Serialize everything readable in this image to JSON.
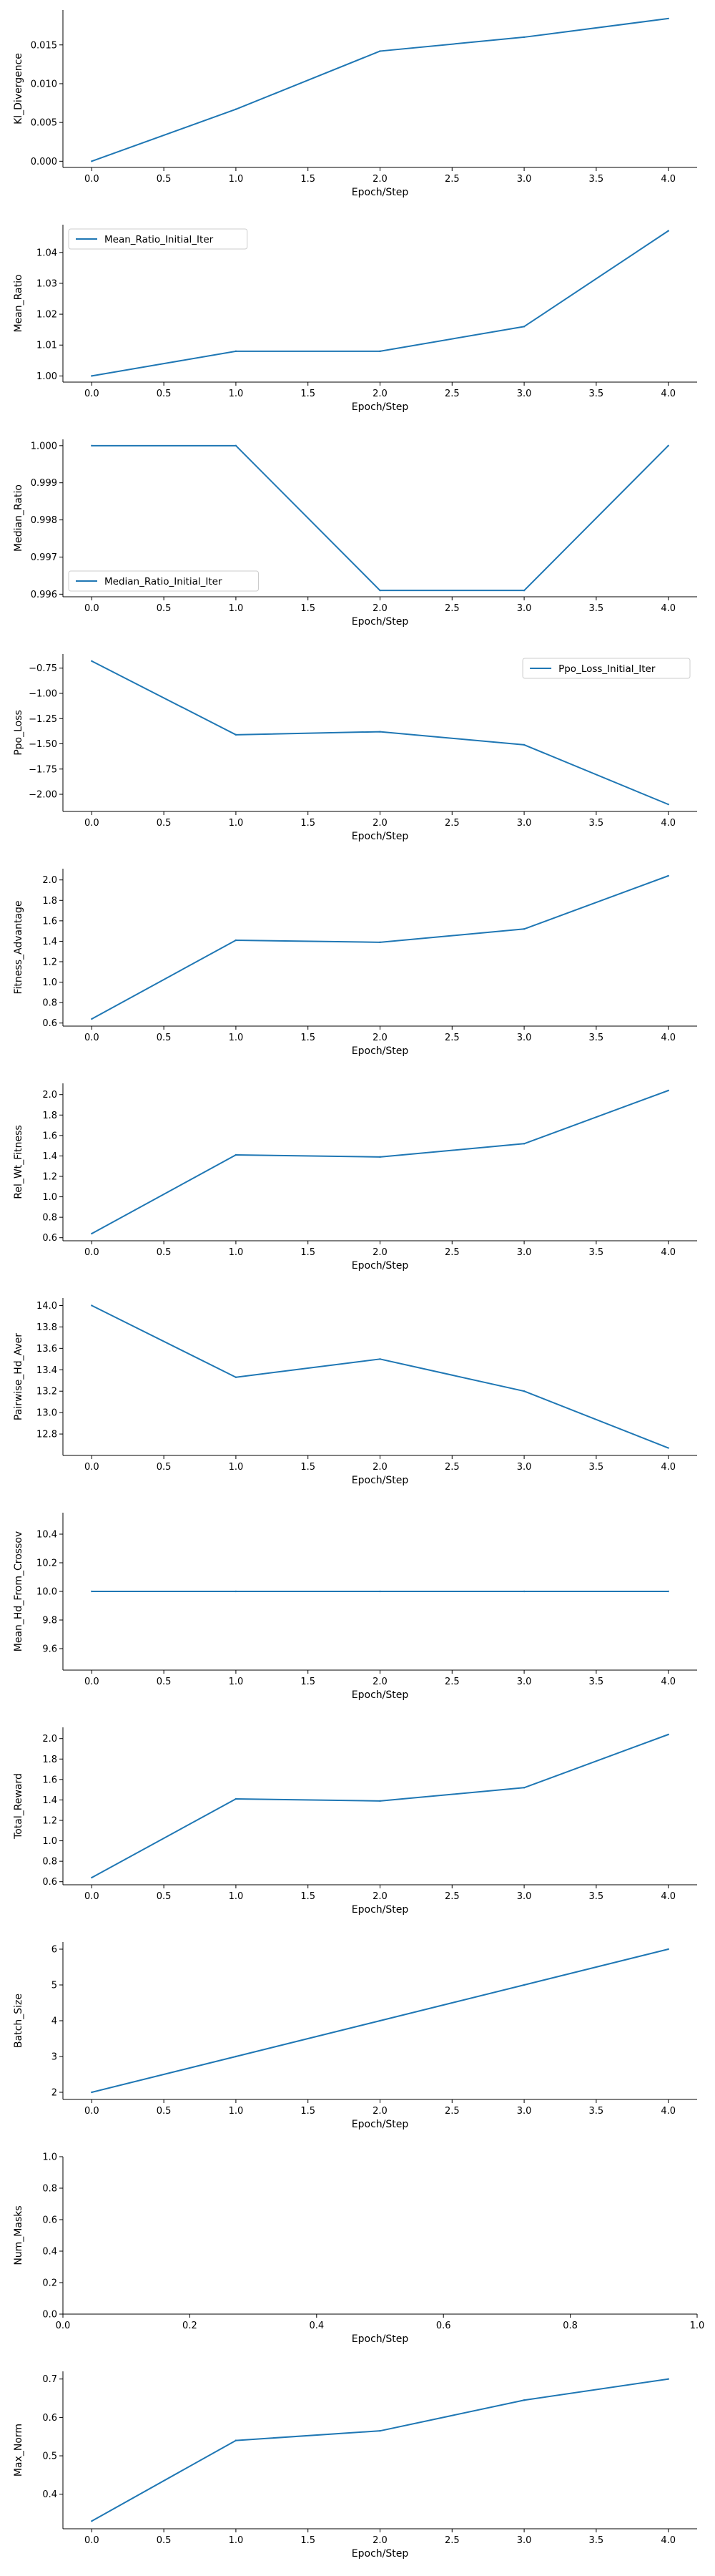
{
  "chart_data": [
    {
      "type": "line",
      "xlabel": "Epoch/Step",
      "ylabel": "Kl_Divergence",
      "x": [
        0.0,
        1.0,
        2.0,
        3.0,
        4.0
      ],
      "series": [
        {
          "values": [
            0.0,
            0.0067,
            0.0142,
            0.016,
            0.0184
          ],
          "color": "#1f77b4"
        }
      ],
      "xlim": [
        -0.2,
        4.2
      ],
      "ylim": [
        -0.0008,
        0.0195
      ],
      "xticks": [
        "0.0",
        "0.5",
        "1.0",
        "1.5",
        "2.0",
        "2.5",
        "3.0",
        "3.5",
        "4.0"
      ],
      "yticks": [
        "0.000",
        "0.005",
        "0.010",
        "0.015"
      ],
      "ytick_values": [
        0.0,
        0.005,
        0.01,
        0.015
      ],
      "legend": null
    },
    {
      "type": "line",
      "xlabel": "Epoch/Step",
      "ylabel": "Mean_Ratio",
      "x": [
        0.0,
        1.0,
        2.0,
        3.0,
        4.0
      ],
      "series": [
        {
          "name": "Mean_Ratio_Initial_Iter",
          "values": [
            1.0,
            1.008,
            1.008,
            1.016,
            1.047
          ],
          "color": "#1f77b4"
        }
      ],
      "xlim": [
        -0.2,
        4.2
      ],
      "ylim": [
        0.998,
        1.049
      ],
      "xticks": [
        "0.0",
        "0.5",
        "1.0",
        "1.5",
        "2.0",
        "2.5",
        "3.0",
        "3.5",
        "4.0"
      ],
      "yticks": [
        "1.00",
        "1.01",
        "1.02",
        "1.03",
        "1.04"
      ],
      "ytick_values": [
        1.0,
        1.01,
        1.02,
        1.03,
        1.04
      ],
      "legend": "upper left"
    },
    {
      "type": "line",
      "xlabel": "Epoch/Step",
      "ylabel": "Median_Ratio",
      "x": [
        0.0,
        1.0,
        2.0,
        3.0,
        4.0
      ],
      "series": [
        {
          "name": "Median_Ratio_Initial_Iter",
          "values": [
            1.0,
            1.0,
            0.9961,
            0.9961,
            1.0
          ],
          "color": "#1f77b4"
        }
      ],
      "xlim": [
        -0.2,
        4.2
      ],
      "ylim": [
        0.99593,
        1.00017
      ],
      "xticks": [
        "0.0",
        "0.5",
        "1.0",
        "1.5",
        "2.0",
        "2.5",
        "3.0",
        "3.5",
        "4.0"
      ],
      "yticks": [
        "0.996",
        "0.997",
        "0.998",
        "0.999",
        "1.000"
      ],
      "ytick_values": [
        0.996,
        0.997,
        0.998,
        0.999,
        1.0
      ],
      "legend": "lower left"
    },
    {
      "type": "line",
      "xlabel": "Epoch/Step",
      "ylabel": "Ppo_Loss",
      "x": [
        0.0,
        1.0,
        2.0,
        3.0,
        4.0
      ],
      "series": [
        {
          "name": "Ppo_Loss_Initial_Iter",
          "values": [
            -0.68,
            -1.41,
            -1.38,
            -1.51,
            -2.1
          ],
          "color": "#1f77b4"
        }
      ],
      "xlim": [
        -0.2,
        4.2
      ],
      "ylim": [
        -2.17,
        -0.61
      ],
      "xticks": [
        "0.0",
        "0.5",
        "1.0",
        "1.5",
        "2.0",
        "2.5",
        "3.0",
        "3.5",
        "4.0"
      ],
      "yticks": [
        "−0.75",
        "−1.00",
        "−1.25",
        "−1.50",
        "−1.75",
        "−2.00"
      ],
      "ytick_values": [
        -0.75,
        -1.0,
        -1.25,
        -1.5,
        -1.75,
        -2.0
      ],
      "legend": "upper right"
    },
    {
      "type": "line",
      "xlabel": "Epoch/Step",
      "ylabel": "Fitness_Advantage",
      "x": [
        0.0,
        1.0,
        2.0,
        3.0,
        4.0
      ],
      "series": [
        {
          "values": [
            0.64,
            1.41,
            1.39,
            1.52,
            2.04
          ],
          "color": "#1f77b4"
        }
      ],
      "xlim": [
        -0.2,
        4.2
      ],
      "ylim": [
        0.57,
        2.11
      ],
      "xticks": [
        "0.0",
        "0.5",
        "1.0",
        "1.5",
        "2.0",
        "2.5",
        "3.0",
        "3.5",
        "4.0"
      ],
      "yticks": [
        "0.6",
        "0.8",
        "1.0",
        "1.2",
        "1.4",
        "1.6",
        "1.8",
        "2.0"
      ],
      "ytick_values": [
        0.6,
        0.8,
        1.0,
        1.2,
        1.4,
        1.6,
        1.8,
        2.0
      ],
      "legend": null
    },
    {
      "type": "line",
      "xlabel": "Epoch/Step",
      "ylabel": "Rel_Wt_Fitness",
      "x": [
        0.0,
        1.0,
        2.0,
        3.0,
        4.0
      ],
      "series": [
        {
          "values": [
            0.64,
            1.41,
            1.39,
            1.52,
            2.04
          ],
          "color": "#1f77b4"
        }
      ],
      "xlim": [
        -0.2,
        4.2
      ],
      "ylim": [
        0.57,
        2.11
      ],
      "xticks": [
        "0.0",
        "0.5",
        "1.0",
        "1.5",
        "2.0",
        "2.5",
        "3.0",
        "3.5",
        "4.0"
      ],
      "yticks": [
        "0.6",
        "0.8",
        "1.0",
        "1.2",
        "1.4",
        "1.6",
        "1.8",
        "2.0"
      ],
      "ytick_values": [
        0.6,
        0.8,
        1.0,
        1.2,
        1.4,
        1.6,
        1.8,
        2.0
      ],
      "legend": null
    },
    {
      "type": "line",
      "xlabel": "Epoch/Step",
      "ylabel": "Pairwise_Hd_Aver",
      "x": [
        0.0,
        1.0,
        2.0,
        3.0,
        4.0
      ],
      "series": [
        {
          "values": [
            14.0,
            13.33,
            13.5,
            13.2,
            12.67
          ],
          "color": "#1f77b4"
        }
      ],
      "xlim": [
        -0.2,
        4.2
      ],
      "ylim": [
        12.6,
        14.07
      ],
      "xticks": [
        "0.0",
        "0.5",
        "1.0",
        "1.5",
        "2.0",
        "2.5",
        "3.0",
        "3.5",
        "4.0"
      ],
      "yticks": [
        "12.8",
        "13.0",
        "13.2",
        "13.4",
        "13.6",
        "13.8",
        "14.0"
      ],
      "ytick_values": [
        12.8,
        13.0,
        13.2,
        13.4,
        13.6,
        13.8,
        14.0
      ],
      "legend": null
    },
    {
      "type": "line",
      "xlabel": "Epoch/Step",
      "ylabel": "Mean_Hd_From_Crossov",
      "x": [
        0.0,
        1.0,
        2.0,
        3.0,
        4.0
      ],
      "series": [
        {
          "values": [
            10.0,
            10.0,
            10.0,
            10.0,
            10.0
          ],
          "color": "#1f77b4"
        }
      ],
      "xlim": [
        -0.2,
        4.2
      ],
      "ylim": [
        9.45,
        10.55
      ],
      "xticks": [
        "0.0",
        "0.5",
        "1.0",
        "1.5",
        "2.0",
        "2.5",
        "3.0",
        "3.5",
        "4.0"
      ],
      "yticks": [
        "9.6",
        "9.8",
        "10.0",
        "10.2",
        "10.4"
      ],
      "ytick_values": [
        9.6,
        9.8,
        10.0,
        10.2,
        10.4
      ],
      "legend": null
    },
    {
      "type": "line",
      "xlabel": "Epoch/Step",
      "ylabel": "Total_Reward",
      "x": [
        0.0,
        1.0,
        2.0,
        3.0,
        4.0
      ],
      "series": [
        {
          "values": [
            0.64,
            1.41,
            1.39,
            1.52,
            2.04
          ],
          "color": "#1f77b4"
        }
      ],
      "xlim": [
        -0.2,
        4.2
      ],
      "ylim": [
        0.57,
        2.11
      ],
      "xticks": [
        "0.0",
        "0.5",
        "1.0",
        "1.5",
        "2.0",
        "2.5",
        "3.0",
        "3.5",
        "4.0"
      ],
      "yticks": [
        "0.6",
        "0.8",
        "1.0",
        "1.2",
        "1.4",
        "1.6",
        "1.8",
        "2.0"
      ],
      "ytick_values": [
        0.6,
        0.8,
        1.0,
        1.2,
        1.4,
        1.6,
        1.8,
        2.0
      ],
      "legend": null
    },
    {
      "type": "line",
      "xlabel": "Epoch/Step",
      "ylabel": "Batch_Size",
      "x": [
        0.0,
        1.0,
        2.0,
        3.0,
        4.0
      ],
      "series": [
        {
          "values": [
            2,
            3,
            4,
            5,
            6
          ],
          "color": "#1f77b4"
        }
      ],
      "xlim": [
        -0.2,
        4.2
      ],
      "ylim": [
        1.8,
        6.2
      ],
      "xticks": [
        "0.0",
        "0.5",
        "1.0",
        "1.5",
        "2.0",
        "2.5",
        "3.0",
        "3.5",
        "4.0"
      ],
      "yticks": [
        "2",
        "3",
        "4",
        "5",
        "6"
      ],
      "ytick_values": [
        2,
        3,
        4,
        5,
        6
      ],
      "legend": null
    },
    {
      "type": "line",
      "xlabel": "Epoch/Step",
      "ylabel": "Num_Masks",
      "x": [],
      "series": [],
      "xlim": [
        0.0,
        1.0
      ],
      "ylim": [
        0.0,
        1.0
      ],
      "xticks": [
        "0.0",
        "0.2",
        "0.4",
        "0.6",
        "0.8",
        "1.0"
      ],
      "xtick_values": [
        0.0,
        0.2,
        0.4,
        0.6,
        0.8,
        1.0
      ],
      "yticks": [
        "0.0",
        "0.2",
        "0.4",
        "0.6",
        "0.8",
        "1.0"
      ],
      "ytick_values": [
        0.0,
        0.2,
        0.4,
        0.6,
        0.8,
        1.0
      ],
      "legend": null
    },
    {
      "type": "line",
      "xlabel": "Epoch/Step",
      "ylabel": "Max_Norm",
      "x": [
        0.0,
        1.0,
        2.0,
        3.0,
        4.0
      ],
      "series": [
        {
          "values": [
            0.33,
            0.54,
            0.565,
            0.645,
            0.7
          ],
          "color": "#1f77b4"
        }
      ],
      "xlim": [
        -0.2,
        4.2
      ],
      "ylim": [
        0.31,
        0.72
      ],
      "xticks": [
        "0.0",
        "0.5",
        "1.0",
        "1.5",
        "2.0",
        "2.5",
        "3.0",
        "3.5",
        "4.0"
      ],
      "yticks": [
        "0.4",
        "0.5",
        "0.6",
        "0.7"
      ],
      "ytick_values": [
        0.4,
        0.5,
        0.6,
        0.7
      ],
      "legend": null
    }
  ]
}
